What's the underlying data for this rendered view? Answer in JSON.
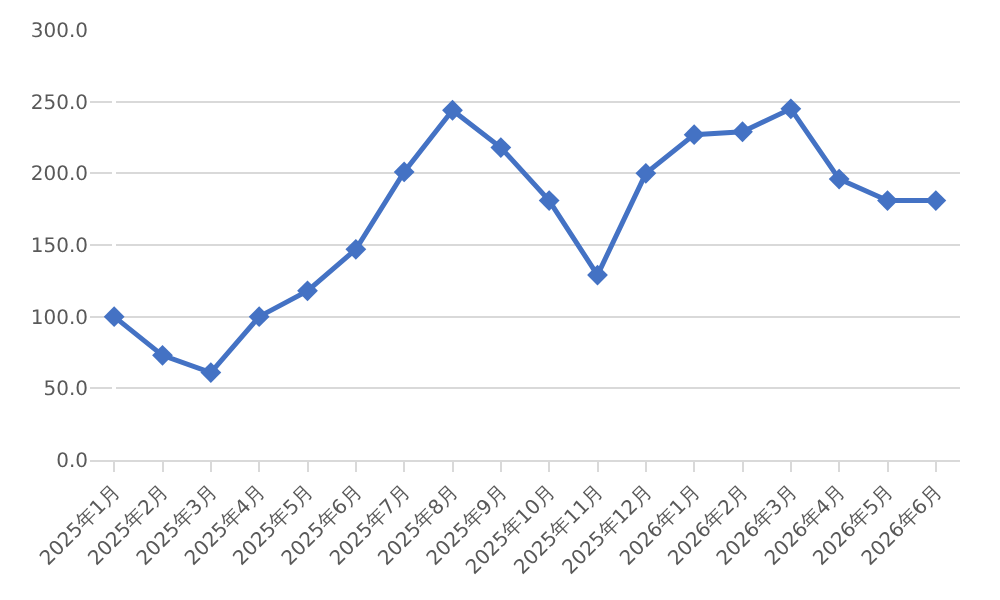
{
  "chart_data": {
    "type": "line",
    "categories": [
      "2025年1月",
      "2025年2月",
      "2025年3月",
      "2025年4月",
      "2025年5月",
      "2025年6月",
      "2025年7月",
      "2025年8月",
      "2025年9月",
      "2025年10月",
      "2025年11月",
      "2025年12月",
      "2026年1月",
      "2026年2月",
      "2026年3月",
      "2026年4月",
      "2026年5月",
      "2026年6月"
    ],
    "series": [
      {
        "color": "#4472c4",
        "values": [
          100,
          73,
          61,
          100,
          118,
          147,
          201,
          244,
          218,
          181,
          129,
          200,
          227,
          229,
          245,
          196,
          181,
          181
        ]
      }
    ],
    "ylim": [
      0,
      300
    ],
    "yticks": [
      {
        "value": 0,
        "label": "0.0"
      },
      {
        "value": 50,
        "label": "50.0"
      },
      {
        "value": 100,
        "label": "100.0"
      },
      {
        "value": 150,
        "label": "150.0"
      },
      {
        "value": 200,
        "label": "200.0"
      },
      {
        "value": 250,
        "label": "250.0"
      },
      {
        "value": 300,
        "label": "300.0"
      }
    ],
    "grid": "y",
    "marker": "diamond",
    "line_style": "solid"
  }
}
